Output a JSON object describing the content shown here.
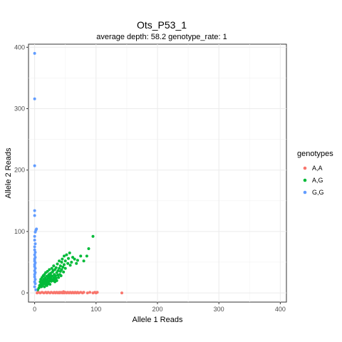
{
  "chart_data": {
    "type": "scatter",
    "title": "Ots_P53_1",
    "subtitle": "average depth:  58.2  genotype_rate:  1",
    "xlabel": "Allele 1 Reads",
    "ylabel": "Allele 2 Reads",
    "xlim": [
      -10,
      410
    ],
    "ylim": [
      -15,
      405
    ],
    "x_ticks": [
      0,
      100,
      200,
      300,
      400
    ],
    "y_ticks": [
      0,
      100,
      200,
      300,
      400
    ],
    "grid": true,
    "legend": {
      "title": "genotypes",
      "position": "right"
    },
    "series": [
      {
        "name": "A,A",
        "color": "#F8766D",
        "points": [
          [
            4,
            0
          ],
          [
            6,
            1
          ],
          [
            9,
            0
          ],
          [
            12,
            1
          ],
          [
            15,
            0
          ],
          [
            18,
            1
          ],
          [
            20,
            0
          ],
          [
            22,
            1
          ],
          [
            25,
            0
          ],
          [
            27,
            1
          ],
          [
            30,
            0
          ],
          [
            32,
            1
          ],
          [
            34,
            0
          ],
          [
            36,
            1
          ],
          [
            38,
            0
          ],
          [
            40,
            1
          ],
          [
            41,
            0
          ],
          [
            43,
            1
          ],
          [
            45,
            0
          ],
          [
            47,
            2
          ],
          [
            48,
            0
          ],
          [
            50,
            1
          ],
          [
            52,
            0
          ],
          [
            54,
            1
          ],
          [
            56,
            0
          ],
          [
            58,
            1
          ],
          [
            60,
            0
          ],
          [
            62,
            1
          ],
          [
            64,
            0
          ],
          [
            66,
            1
          ],
          [
            68,
            0
          ],
          [
            70,
            1
          ],
          [
            72,
            0
          ],
          [
            75,
            1
          ],
          [
            78,
            0
          ],
          [
            80,
            1
          ],
          [
            86,
            0
          ],
          [
            90,
            1
          ],
          [
            95,
            0
          ],
          [
            98,
            1
          ],
          [
            100,
            0
          ],
          [
            102,
            1
          ],
          [
            142,
            0
          ]
        ]
      },
      {
        "name": "A,G",
        "color": "#00BA38",
        "points": [
          [
            5,
            5
          ],
          [
            7,
            8
          ],
          [
            8,
            12
          ],
          [
            9,
            18
          ],
          [
            10,
            14
          ],
          [
            10,
            22
          ],
          [
            11,
            10
          ],
          [
            12,
            16
          ],
          [
            12,
            25
          ],
          [
            13,
            20
          ],
          [
            13,
            12
          ],
          [
            14,
            28
          ],
          [
            14,
            18
          ],
          [
            15,
            22
          ],
          [
            15,
            15
          ],
          [
            16,
            30
          ],
          [
            16,
            10
          ],
          [
            17,
            25
          ],
          [
            17,
            19
          ],
          [
            18,
            14
          ],
          [
            18,
            33
          ],
          [
            19,
            22
          ],
          [
            19,
            17
          ],
          [
            20,
            27
          ],
          [
            20,
            12
          ],
          [
            21,
            35
          ],
          [
            21,
            20
          ],
          [
            22,
            24
          ],
          [
            22,
            15
          ],
          [
            23,
            30
          ],
          [
            23,
            18
          ],
          [
            24,
            38
          ],
          [
            24,
            26
          ],
          [
            25,
            21
          ],
          [
            25,
            14
          ],
          [
            26,
            32
          ],
          [
            26,
            24
          ],
          [
            27,
            28
          ],
          [
            27,
            19
          ],
          [
            28,
            40
          ],
          [
            28,
            22
          ],
          [
            29,
            34
          ],
          [
            29,
            27
          ],
          [
            30,
            20
          ],
          [
            30,
            36
          ],
          [
            31,
            25
          ],
          [
            31,
            44
          ],
          [
            32,
            30
          ],
          [
            32,
            22
          ],
          [
            33,
            38
          ],
          [
            33,
            18
          ],
          [
            34,
            28
          ],
          [
            35,
            41
          ],
          [
            35,
            24
          ],
          [
            36,
            33
          ],
          [
            36,
            20
          ],
          [
            37,
            47
          ],
          [
            38,
            29
          ],
          [
            38,
            36
          ],
          [
            39,
            25
          ],
          [
            40,
            52
          ],
          [
            40,
            40
          ],
          [
            41,
            30
          ],
          [
            42,
            44
          ],
          [
            42,
            35
          ],
          [
            43,
            28
          ],
          [
            44,
            50
          ],
          [
            44,
            38
          ],
          [
            45,
            55
          ],
          [
            46,
            42
          ],
          [
            47,
            34
          ],
          [
            48,
            60
          ],
          [
            48,
            46
          ],
          [
            50,
            40
          ],
          [
            50,
            52
          ],
          [
            52,
            62
          ],
          [
            54,
            48
          ],
          [
            55,
            56
          ],
          [
            57,
            65
          ],
          [
            58,
            45
          ],
          [
            60,
            50
          ],
          [
            62,
            58
          ],
          [
            65,
            55
          ],
          [
            68,
            48
          ],
          [
            70,
            53
          ],
          [
            75,
            60
          ],
          [
            80,
            52
          ],
          [
            85,
            60
          ],
          [
            88,
            72
          ],
          [
            95,
            92
          ]
        ]
      },
      {
        "name": "G,G",
        "color": "#619CFF",
        "points": [
          [
            0,
            390
          ],
          [
            0,
            316
          ],
          [
            0,
            207
          ],
          [
            0,
            134
          ],
          [
            0,
            126
          ],
          [
            1,
            99
          ],
          [
            2,
            102
          ],
          [
            3,
            104
          ],
          [
            0,
            92
          ],
          [
            0,
            86
          ],
          [
            1,
            80
          ],
          [
            0,
            75
          ],
          [
            0,
            70
          ],
          [
            1,
            66
          ],
          [
            0,
            62
          ],
          [
            1,
            58
          ],
          [
            0,
            55
          ],
          [
            0,
            52
          ],
          [
            1,
            49
          ],
          [
            0,
            46
          ],
          [
            0,
            43
          ],
          [
            1,
            40
          ],
          [
            0,
            36
          ],
          [
            1,
            33
          ],
          [
            0,
            30
          ],
          [
            0,
            26
          ],
          [
            1,
            22
          ],
          [
            0,
            18
          ],
          [
            1,
            15
          ],
          [
            0,
            10
          ],
          [
            2,
            5
          ]
        ]
      }
    ]
  }
}
